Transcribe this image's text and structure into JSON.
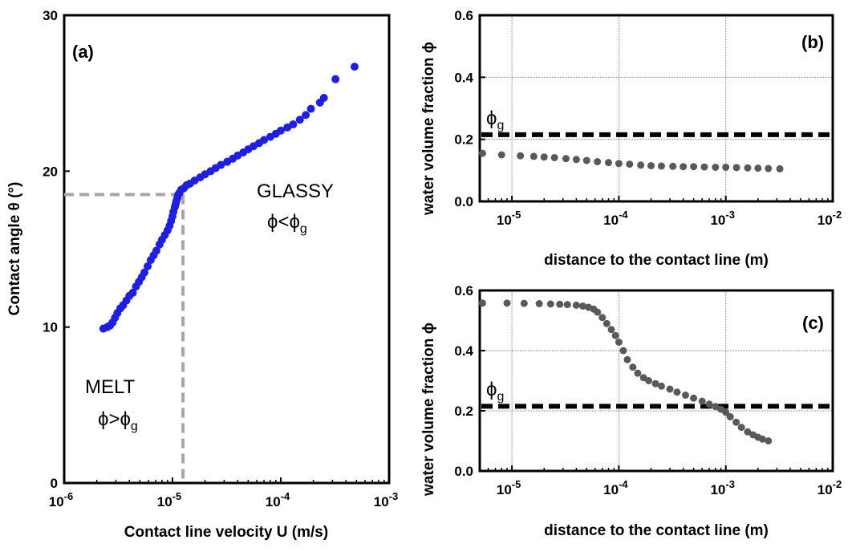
{
  "chart_data": [
    {
      "type": "scatter",
      "panel_label": "(a)",
      "xlabel": "Contact line velocity U (m/s)",
      "ylabel": "Contact angle θ (°)",
      "xscale": "log",
      "xlim": [
        1e-06,
        0.001
      ],
      "ylim": [
        0,
        30
      ],
      "x_tick_labels": [
        "10",
        "10",
        "10",
        "10"
      ],
      "x_tick_exponents": [
        "-6",
        "-5",
        "-4",
        "-3"
      ],
      "x_tick_values": [
        1e-06,
        1e-05,
        0.0001,
        0.001
      ],
      "y_tick_labels": [
        "0",
        "10",
        "20",
        "30"
      ],
      "y_tick_values": [
        0,
        10,
        20,
        30
      ],
      "grid": false,
      "point_color": "#1f1fe0",
      "guide_color": "#a6a6a6",
      "guide_lines": {
        "x": 1.25e-05,
        "y": 18.5
      },
      "annotations": [
        {
          "id": "glassy",
          "main": "GLASSY",
          "rel": "ϕ<ϕ",
          "sub": "g",
          "x": 0.0002,
          "y": 17.8
        },
        {
          "id": "melt",
          "main": "MELT",
          "rel": "ϕ>ϕ",
          "sub": "g",
          "x": 2.2e-06,
          "y": 4.6
        }
      ],
      "series": [
        {
          "x": [
            2.3e-06,
            2.5e-06,
            2.65e-06,
            2.8e-06,
            2.95e-06,
            3.1e-06,
            3.3e-06,
            3.5e-06,
            3.75e-06,
            4e-06,
            4.3e-06,
            4.6e-06,
            4.9e-06,
            5.2e-06,
            5.5e-06,
            5.9e-06,
            6.3e-06,
            6.7e-06,
            7.1e-06,
            7.6e-06,
            8e-06,
            8.5e-06,
            9e-06,
            9.4e-06,
            9.7e-06,
            1e-05,
            1.02e-05,
            1.05e-05,
            1.07e-05,
            1.09e-05,
            1.11e-05,
            1.13e-05,
            1.16e-05,
            1.2e-05,
            1.27e-05,
            1.35e-05,
            1.45e-05,
            1.6e-05,
            1.8e-05,
            2e-05,
            2.25e-05,
            2.5e-05,
            2.8e-05,
            3.2e-05,
            3.6e-05,
            4e-05,
            4.5e-05,
            5e-05,
            5.6e-05,
            6.3e-05,
            7e-05,
            8e-05,
            9e-05,
            0.0001,
            0.000115,
            0.00013,
            0.00015,
            0.00017,
            0.00019,
            0.00023,
            0.00025,
            0.00032,
            0.00048
          ],
          "y": [
            9.9,
            10.0,
            10.1,
            10.3,
            10.6,
            10.9,
            11.2,
            11.4,
            11.7,
            12.0,
            12.2,
            12.6,
            12.9,
            13.2,
            13.5,
            13.9,
            14.3,
            14.6,
            14.9,
            15.3,
            15.6,
            15.9,
            16.2,
            16.5,
            16.8,
            17.1,
            17.4,
            17.7,
            17.9,
            18.1,
            18.3,
            18.5,
            18.6,
            18.8,
            18.9,
            19.1,
            19.2,
            19.4,
            19.6,
            19.8,
            20.0,
            20.2,
            20.4,
            20.6,
            20.8,
            21.0,
            21.2,
            21.4,
            21.6,
            21.8,
            22.0,
            22.2,
            22.4,
            22.6,
            22.8,
            23.0,
            23.3,
            23.6,
            24.0,
            24.4,
            24.7,
            25.9,
            26.7
          ]
        }
      ]
    },
    {
      "type": "scatter",
      "panel_label": "(b)",
      "xlabel": "distance to the contact line (m)",
      "ylabel": "water volume fraction ϕ",
      "xscale": "log",
      "xlim": [
        5e-06,
        0.01
      ],
      "ylim": [
        0,
        0.6
      ],
      "x_tick_labels": [
        "10",
        "10",
        "10",
        "10"
      ],
      "x_tick_exponents": [
        "-5",
        "-4",
        "-3",
        "-2"
      ],
      "x_tick_values": [
        1e-05,
        0.0001,
        0.001,
        0.01
      ],
      "y_tick_labels": [
        "0.0",
        "0.2",
        "0.4",
        "0.6"
      ],
      "y_tick_values": [
        0,
        0.2,
        0.4,
        0.6
      ],
      "grid": true,
      "point_color": "#595959",
      "phi_g": {
        "label": "ϕ",
        "sub": "g",
        "value": 0.215
      },
      "series": [
        {
          "x": [
            5.3e-06,
            8e-06,
            1.2e-05,
            1.6e-05,
            2e-05,
            2.5e-05,
            3.2e-05,
            4e-05,
            5e-05,
            6.3e-05,
            8e-05,
            0.0001,
            0.000126,
            0.00016,
            0.0002,
            0.00025,
            0.00032,
            0.0004,
            0.0005,
            0.00063,
            0.0008,
            0.001,
            0.00126,
            0.0016,
            0.002,
            0.0025,
            0.0032
          ],
          "y": [
            0.155,
            0.15,
            0.147,
            0.145,
            0.143,
            0.141,
            0.138,
            0.135,
            0.132,
            0.128,
            0.125,
            0.122,
            0.12,
            0.117,
            0.115,
            0.114,
            0.113,
            0.112,
            0.112,
            0.111,
            0.11,
            0.11,
            0.109,
            0.108,
            0.107,
            0.106,
            0.105
          ]
        }
      ]
    },
    {
      "type": "scatter",
      "panel_label": "(c)",
      "xlabel": "distance to the contact line (m)",
      "ylabel": "water volume fraction ϕ",
      "xscale": "log",
      "xlim": [
        5e-06,
        0.01
      ],
      "ylim": [
        0,
        0.6
      ],
      "x_tick_labels": [
        "10",
        "10",
        "10",
        "10"
      ],
      "x_tick_exponents": [
        "-5",
        "-4",
        "-3",
        "-2"
      ],
      "x_tick_values": [
        1e-05,
        0.0001,
        0.001,
        0.01
      ],
      "y_tick_labels": [
        "0.0",
        "0.2",
        "0.4",
        "0.6"
      ],
      "y_tick_values": [
        0,
        0.2,
        0.4,
        0.6
      ],
      "grid": true,
      "point_color": "#595959",
      "phi_g": {
        "label": "ϕ",
        "sub": "g",
        "value": 0.215
      },
      "series": [
        {
          "x": [
            5.3e-06,
            9e-06,
            1.3e-05,
            1.8e-05,
            2.3e-05,
            2.8e-05,
            3.3e-05,
            4e-05,
            4.6e-05,
            5.2e-05,
            5.8e-05,
            6.3e-05,
            7e-05,
            7.7e-05,
            8.5e-05,
            9.3e-05,
            0.0001,
            0.00011,
            0.00012,
            0.000135,
            0.00015,
            0.00017,
            0.00019,
            0.00022,
            0.00025,
            0.0003,
            0.00035,
            0.00042,
            0.0005,
            0.0006,
            0.0007,
            0.0008,
            0.0009,
            0.001,
            0.0011,
            0.00125,
            0.0014,
            0.0016,
            0.0018,
            0.002,
            0.0022,
            0.0025
          ],
          "y": [
            0.558,
            0.558,
            0.557,
            0.556,
            0.555,
            0.554,
            0.553,
            0.551,
            0.548,
            0.544,
            0.538,
            0.528,
            0.51,
            0.49,
            0.47,
            0.45,
            0.428,
            0.4,
            0.37,
            0.345,
            0.325,
            0.31,
            0.3,
            0.29,
            0.282,
            0.272,
            0.262,
            0.252,
            0.242,
            0.232,
            0.222,
            0.214,
            0.205,
            0.195,
            0.18,
            0.162,
            0.145,
            0.13,
            0.12,
            0.112,
            0.106,
            0.1
          ]
        }
      ]
    }
  ]
}
